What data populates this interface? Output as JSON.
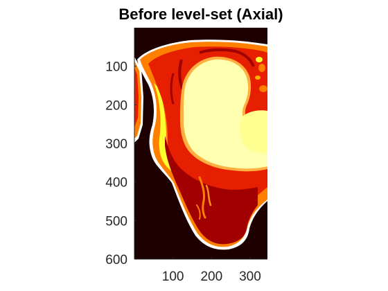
{
  "title": "Before level-set (Axial)",
  "image": {
    "description_free": true,
    "colormap": "hot",
    "colors": {
      "background": "#1e0000",
      "dark_red": "#a00000",
      "red": "#e61f00",
      "orange": "#ff8000",
      "yellow": "#ffff30",
      "pale_yellow": "#ffffb0",
      "white": "#ffffff"
    }
  },
  "axes": {
    "x_ticks": [
      "100",
      "200",
      "300"
    ],
    "y_ticks": [
      "100",
      "200",
      "300",
      "400",
      "500",
      "600"
    ],
    "x_tick_values": [
      100,
      200,
      300
    ],
    "y_tick_values": [
      100,
      200,
      300,
      400,
      500,
      600
    ],
    "xlim": [
      0,
      345
    ],
    "ylim": [
      0,
      600
    ],
    "y_reversed": true
  }
}
